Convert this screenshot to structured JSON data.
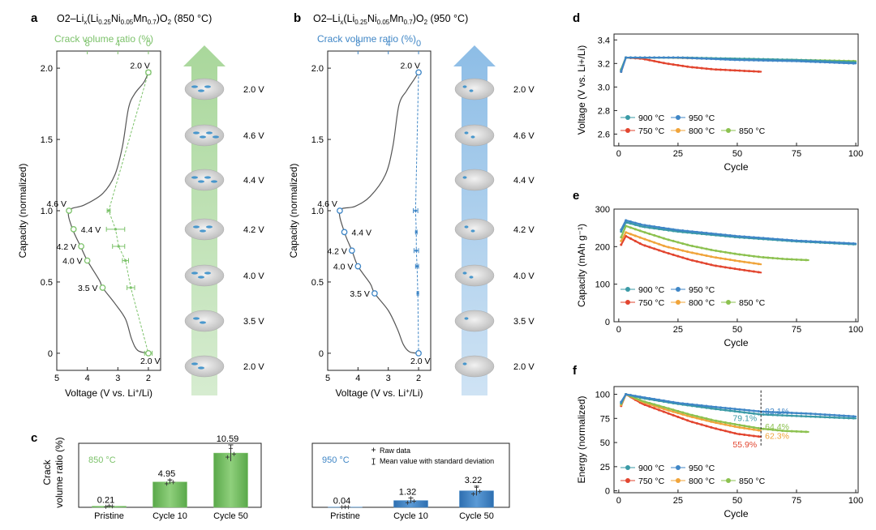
{
  "colors": {
    "green": "#7cc26a",
    "blue": "#3f86c6",
    "red": "#e2452f",
    "orange": "#f0a43a",
    "lime": "#8cc14f",
    "teal": "#3a9aa6",
    "axis": "#222222"
  },
  "panels": {
    "a": {
      "letter": "a",
      "title_pre": "O2–Li",
      "title_x": "x",
      "title_mid": "(Li",
      "s1": "0.25",
      "t2": "Ni",
      "s2": "0.05",
      "t3": "Mn",
      "s3": "0.7",
      "title_post": ")O",
      "s4": "2",
      "title_temp": " (850 °C)",
      "top_axis_label": "Crack volume ratio (%)"
    },
    "b": {
      "letter": "b",
      "title_pre": "O2–Li",
      "title_x": "x",
      "title_mid": "(Li",
      "s1": "0.25",
      "t2": "Ni",
      "s2": "0.05",
      "t3": "Mn",
      "s3": "0.7",
      "title_post": ")O",
      "s4": "2",
      "title_temp": " (950 °C)",
      "top_axis_label": "Crack volume ratio (%)"
    },
    "c": {
      "letter": "c"
    },
    "d": {
      "letter": "d"
    },
    "e": {
      "letter": "e"
    },
    "f": {
      "letter": "f"
    }
  },
  "ab_common": {
    "ylabel": "Capacity (normalized)",
    "xlabel_pre": "Voltage (V vs. Li",
    "xlabel_sup": "+",
    "xlabel_post": "/Li)"
  },
  "arrow_labels": [
    "2.0 V",
    "4.6 V",
    "4.4 V",
    "4.2 V",
    "4.0 V",
    "3.5 V",
    "2.0 V"
  ],
  "c_common": {
    "ylabel_line1": "Crack",
    "ylabel_line2": "volume ratio (%)",
    "legend_raw": "Raw data",
    "legend_mean": "Mean value with standard deviation",
    "label_850": "850 °C",
    "label_950": "950 °C"
  },
  "cycling_legend": [
    "900 °C",
    "950 °C",
    "750 °C",
    "800 °C",
    "850 °C"
  ],
  "chart_data": [
    {
      "id": "a",
      "type": "line",
      "title": "O2–Lix(Li0.25Ni0.05Mn0.7)O2 (850 °C)",
      "xlabel": "Voltage (V vs. Li+/Li)",
      "ylabel": "Capacity (normalized)",
      "top_xlabel": "Crack volume ratio (%)",
      "xlim": [
        5,
        1.6
      ],
      "ylim": [
        -0.12,
        2.12
      ],
      "xticks": [
        5,
        4,
        3,
        2
      ],
      "yticks": [
        0,
        0.5,
        1.0,
        1.5,
        2.0
      ],
      "top_ticks": [
        8,
        4,
        0
      ],
      "top_map": {
        "v_at_zero": 2.0,
        "v_per_unit": 0.25
      },
      "curve": [
        [
          2.0,
          1.97
        ],
        [
          2.15,
          1.9
        ],
        [
          2.45,
          1.82
        ],
        [
          2.65,
          1.72
        ],
        [
          2.85,
          1.45
        ],
        [
          3.1,
          1.25
        ],
        [
          3.5,
          1.12
        ],
        [
          4.1,
          1.04
        ],
        [
          4.6,
          1.0
        ],
        [
          4.5,
          0.88
        ],
        [
          4.2,
          0.74
        ],
        [
          4.0,
          0.65
        ],
        [
          3.6,
          0.51
        ],
        [
          3.5,
          0.46
        ],
        [
          3.1,
          0.35
        ],
        [
          2.75,
          0.24
        ],
        [
          2.55,
          0.1
        ],
        [
          2.35,
          0.02
        ],
        [
          2.0,
          0.0
        ]
      ],
      "points": [
        {
          "label": "2.0 V",
          "voltage": 2.0,
          "capacity": 1.97,
          "crack": 0.0,
          "err": 0.3
        },
        {
          "label": "4.6 V",
          "voltage": 4.6,
          "capacity": 1.0,
          "crack": 5.2,
          "err": 0.2
        },
        {
          "label": "4.4 V",
          "voltage": 4.45,
          "capacity": 0.87,
          "crack": 4.3,
          "err": 1.2
        },
        {
          "label": "4.2 V",
          "voltage": 4.2,
          "capacity": 0.75,
          "crack": 3.9,
          "err": 0.8
        },
        {
          "label": "4.0 V",
          "voltage": 4.0,
          "capacity": 0.65,
          "crack": 3.0,
          "err": 0.4
        },
        {
          "label": "3.5 V",
          "voltage": 3.5,
          "capacity": 0.46,
          "crack": 2.3,
          "err": 0.5
        },
        {
          "label": "2.0 V",
          "voltage": 2.0,
          "capacity": 0.0,
          "crack": 0.0,
          "err": 0.5
        }
      ]
    },
    {
      "id": "b",
      "type": "line",
      "title": "O2–Lix(Li0.25Ni0.05Mn0.7)O2 (950 °C)",
      "xlabel": "Voltage (V vs. Li+/Li)",
      "ylabel": "Capacity (normalized)",
      "top_xlabel": "Crack volume ratio (%)",
      "xlim": [
        5,
        1.6
      ],
      "ylim": [
        -0.12,
        2.12
      ],
      "xticks": [
        5,
        4,
        3,
        2
      ],
      "yticks": [
        0,
        0.5,
        1.0,
        1.5,
        2.0
      ],
      "top_ticks": [
        8,
        4,
        0
      ],
      "top_map": {
        "v_at_zero": 2.0,
        "v_per_unit": 0.25
      },
      "curve": [
        [
          2.0,
          1.97
        ],
        [
          2.15,
          1.92
        ],
        [
          2.4,
          1.84
        ],
        [
          2.65,
          1.74
        ],
        [
          2.85,
          1.45
        ],
        [
          3.1,
          1.25
        ],
        [
          3.6,
          1.1
        ],
        [
          4.1,
          1.03
        ],
        [
          4.6,
          1.0
        ],
        [
          4.45,
          0.85
        ],
        [
          4.2,
          0.72
        ],
        [
          4.0,
          0.61
        ],
        [
          3.6,
          0.49
        ],
        [
          3.45,
          0.42
        ],
        [
          3.0,
          0.3
        ],
        [
          2.7,
          0.17
        ],
        [
          2.5,
          0.06
        ],
        [
          2.3,
          0.01
        ],
        [
          2.0,
          0.0
        ]
      ],
      "points": [
        {
          "label": "2.0 V",
          "voltage": 2.0,
          "capacity": 1.97,
          "crack": 0.0,
          "err": 0.2
        },
        {
          "label": "4.6 V",
          "voltage": 4.6,
          "capacity": 1.0,
          "crack": 0.4,
          "err": 0.3
        },
        {
          "label": "4.4 V",
          "voltage": 4.45,
          "capacity": 0.85,
          "crack": 0.3,
          "err": 0.1
        },
        {
          "label": "4.2 V",
          "voltage": 4.2,
          "capacity": 0.72,
          "crack": 0.3,
          "err": 0.3
        },
        {
          "label": "4.0 V",
          "voltage": 4.0,
          "capacity": 0.61,
          "crack": 0.2,
          "err": 0.2
        },
        {
          "label": "3.5 V",
          "voltage": 3.45,
          "capacity": 0.42,
          "crack": 0.1,
          "err": 0.1
        },
        {
          "label": "2.0 V",
          "voltage": 2.0,
          "capacity": 0.0,
          "crack": 0.0,
          "err": 0.1
        }
      ]
    },
    {
      "id": "c1",
      "type": "bar",
      "group": "850 °C",
      "categories": [
        "Pristine",
        "Cycle 10",
        "Cycle 50"
      ],
      "values": [
        0.21,
        4.95,
        10.59
      ],
      "labels": [
        "0.21",
        "4.95",
        "10.59"
      ],
      "errors": [
        0.05,
        0.4,
        1.6
      ],
      "raw": [
        [
          0.1,
          0.3,
          0.2
        ],
        [
          4.6,
          5.3,
          4.9
        ],
        [
          9.8,
          11.5,
          10.4
        ]
      ],
      "ylabel": "Crack volume ratio (%)",
      "ylim": [
        0,
        12.5
      ]
    },
    {
      "id": "c2",
      "type": "bar",
      "group": "950 °C",
      "categories": [
        "Pristine",
        "Cycle 10",
        "Cycle 50"
      ],
      "values": [
        0.04,
        1.32,
        3.22
      ],
      "labels": [
        "0.04",
        "1.32",
        "3.22"
      ],
      "errors": [
        0.02,
        0.5,
        0.9
      ],
      "raw": [
        [
          0.03,
          0.05,
          0.04
        ],
        [
          0.9,
          1.8,
          1.2
        ],
        [
          2.6,
          3.9,
          3.1
        ]
      ],
      "ylim": [
        0,
        12.5
      ]
    },
    {
      "id": "d",
      "type": "line",
      "xlabel": "Cycle",
      "ylabel": "Voltage (V vs. Li+/Li)",
      "xlim": [
        -2,
        101
      ],
      "ylim": [
        2.5,
        3.45
      ],
      "xticks": [
        0,
        25,
        50,
        75,
        100
      ],
      "yticks": [
        2.6,
        2.8,
        3.0,
        3.2,
        3.4
      ],
      "series": [
        {
          "name": "750 °C",
          "color": "#e2452f",
          "end": 60,
          "pts": [
            [
              1,
              3.13
            ],
            [
              3,
              3.25
            ],
            [
              10,
              3.24
            ],
            [
              20,
              3.2
            ],
            [
              30,
              3.17
            ],
            [
              40,
              3.15
            ],
            [
              50,
              3.14
            ],
            [
              60,
              3.13
            ]
          ]
        },
        {
          "name": "800 °C",
          "color": "#f0a43a",
          "end": 60,
          "pts": [
            [
              1,
              3.14
            ],
            [
              3,
              3.25
            ],
            [
              20,
              3.25
            ],
            [
              40,
              3.24
            ],
            [
              60,
              3.23
            ]
          ]
        },
        {
          "name": "850 °C",
          "color": "#8cc14f",
          "end": 100,
          "pts": [
            [
              1,
              3.15
            ],
            [
              3,
              3.25
            ],
            [
              25,
              3.25
            ],
            [
              50,
              3.24
            ],
            [
              75,
              3.23
            ],
            [
              100,
              3.22
            ]
          ]
        },
        {
          "name": "900 °C",
          "color": "#3a9aa6",
          "end": 100,
          "pts": [
            [
              1,
              3.14
            ],
            [
              3,
              3.25
            ],
            [
              25,
              3.25
            ],
            [
              50,
              3.24
            ],
            [
              75,
              3.23
            ],
            [
              100,
              3.21
            ]
          ]
        },
        {
          "name": "950 °C",
          "color": "#3f86c6",
          "end": 100,
          "pts": [
            [
              1,
              3.13
            ],
            [
              3,
              3.25
            ],
            [
              25,
              3.25
            ],
            [
              50,
              3.23
            ],
            [
              75,
              3.22
            ],
            [
              100,
              3.2
            ]
          ]
        }
      ]
    },
    {
      "id": "e",
      "type": "line",
      "xlabel": "Cycle",
      "ylabel": "Capacity (mAh g⁻¹)",
      "xlim": [
        -2,
        101
      ],
      "ylim": [
        0,
        300
      ],
      "xticks": [
        0,
        25,
        50,
        75,
        100
      ],
      "yticks": [
        0,
        100,
        200,
        300
      ],
      "series": [
        {
          "name": "750 °C",
          "color": "#e2452f",
          "end": 60,
          "pts": [
            [
              1,
              205
            ],
            [
              3,
              228
            ],
            [
              10,
              205
            ],
            [
              20,
              184
            ],
            [
              30,
              165
            ],
            [
              40,
              150
            ],
            [
              50,
              140
            ],
            [
              60,
              131
            ]
          ]
        },
        {
          "name": "800 °C",
          "color": "#f0a43a",
          "end": 60,
          "pts": [
            [
              1,
              215
            ],
            [
              3,
              238
            ],
            [
              10,
              222
            ],
            [
              20,
              200
            ],
            [
              30,
              185
            ],
            [
              40,
              172
            ],
            [
              50,
              162
            ],
            [
              60,
              153
            ]
          ]
        },
        {
          "name": "850 °C",
          "color": "#8cc14f",
          "end": 80,
          "pts": [
            [
              1,
              225
            ],
            [
              3,
              255
            ],
            [
              10,
              240
            ],
            [
              20,
              220
            ],
            [
              30,
              203
            ],
            [
              40,
              190
            ],
            [
              50,
              180
            ],
            [
              60,
              172
            ],
            [
              70,
              167
            ],
            [
              80,
              164
            ]
          ]
        },
        {
          "name": "900 °C",
          "color": "#3a9aa6",
          "end": 100,
          "pts": [
            [
              1,
              240
            ],
            [
              3,
              265
            ],
            [
              10,
              253
            ],
            [
              25,
              240
            ],
            [
              50,
              225
            ],
            [
              75,
              214
            ],
            [
              100,
              206
            ]
          ]
        },
        {
          "name": "950 °C",
          "color": "#3f86c6",
          "end": 100,
          "pts": [
            [
              1,
              245
            ],
            [
              3,
              270
            ],
            [
              10,
              258
            ],
            [
              25,
              244
            ],
            [
              50,
              228
            ],
            [
              75,
              216
            ],
            [
              100,
              208
            ]
          ]
        }
      ]
    },
    {
      "id": "f",
      "type": "line",
      "xlabel": "Cycle",
      "ylabel": "Energy (normalized)",
      "xlim": [
        -2,
        101
      ],
      "ylim": [
        -2,
        108
      ],
      "xticks": [
        0,
        25,
        50,
        75,
        100
      ],
      "yticks": [
        0,
        25,
        50,
        75,
        100
      ],
      "cutoff_cycle": 60,
      "series": [
        {
          "name": "750 °C",
          "color": "#e2452f",
          "end": 60,
          "pts": [
            [
              1,
              88
            ],
            [
              3,
              100
            ],
            [
              10,
              90
            ],
            [
              20,
              81
            ],
            [
              30,
              72
            ],
            [
              40,
              65
            ],
            [
              50,
              59
            ],
            [
              60,
              55.9
            ]
          ]
        },
        {
          "name": "800 °C",
          "color": "#f0a43a",
          "end": 60,
          "pts": [
            [
              1,
              89
            ],
            [
              3,
              100
            ],
            [
              10,
              92
            ],
            [
              20,
              84
            ],
            [
              30,
              77
            ],
            [
              40,
              71
            ],
            [
              50,
              66
            ],
            [
              60,
              62.3
            ]
          ]
        },
        {
          "name": "850 °C",
          "color": "#8cc14f",
          "end": 80,
          "pts": [
            [
              1,
              90
            ],
            [
              3,
              100
            ],
            [
              10,
              93
            ],
            [
              20,
              86
            ],
            [
              30,
              79
            ],
            [
              40,
              73
            ],
            [
              50,
              68.5
            ],
            [
              60,
              64.4
            ],
            [
              70,
              62
            ],
            [
              80,
              61
            ]
          ]
        },
        {
          "name": "900 °C",
          "color": "#3a9aa6",
          "end": 100,
          "pts": [
            [
              1,
              91
            ],
            [
              3,
              100
            ],
            [
              10,
              96
            ],
            [
              25,
              90
            ],
            [
              40,
              85
            ],
            [
              60,
              79.1
            ],
            [
              80,
              77
            ],
            [
              100,
              75
            ]
          ]
        },
        {
          "name": "950 °C",
          "color": "#3f86c6",
          "end": 100,
          "pts": [
            [
              1,
              92
            ],
            [
              3,
              100
            ],
            [
              10,
              97
            ],
            [
              25,
              91
            ],
            [
              40,
              87
            ],
            [
              60,
              82.1
            ],
            [
              80,
              80
            ],
            [
              100,
              77
            ]
          ]
        }
      ],
      "annotations": [
        {
          "text": "82.1%",
          "color": "#3f86c6",
          "cycle": 60,
          "value": 82.1,
          "side": "right"
        },
        {
          "text": "79.1%",
          "color": "#3a9aa6",
          "cycle": 60,
          "value": 79.1,
          "side": "left"
        },
        {
          "text": "64.4%",
          "color": "#8cc14f",
          "cycle": 60,
          "value": 64.4,
          "side": "right"
        },
        {
          "text": "62.3%",
          "color": "#f0a43a",
          "cycle": 60,
          "value": 62.3,
          "side": "right"
        },
        {
          "text": "55.9%",
          "color": "#e2452f",
          "cycle": 60,
          "value": 55.9,
          "side": "left"
        }
      ]
    }
  ]
}
